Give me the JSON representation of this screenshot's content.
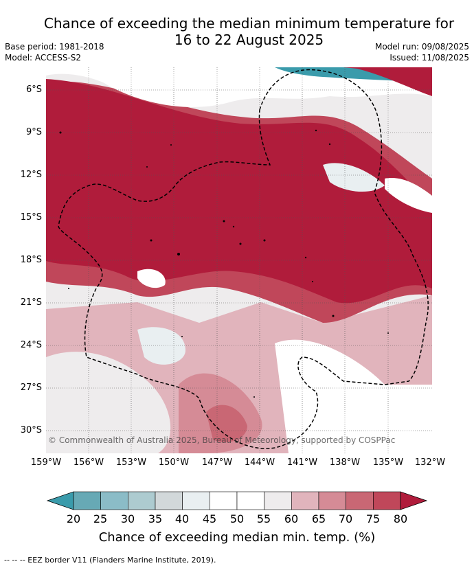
{
  "title_line1": "Chance of exceeding the median minimum temperature for",
  "title_line2": "16 to 22 August 2025",
  "meta": {
    "base_period": "Base period: 1981-2018",
    "model": "Model: ACCESS-S2",
    "model_run": "Model run: 09/08/2025",
    "issued": "Issued: 11/08/2025"
  },
  "lat_labels": [
    "6°S",
    "9°S",
    "12°S",
    "15°S",
    "18°S",
    "21°S",
    "24°S",
    "27°S",
    "30°S"
  ],
  "lon_labels": [
    "159°W",
    "156°W",
    "153°W",
    "150°W",
    "147°W",
    "144°W",
    "141°W",
    "138°W",
    "135°W",
    "132°W"
  ],
  "copyright": "© Commonwealth of Australia 2025, Bureau of Meteorology, supported by COSPPac",
  "colorbar": {
    "ticks": [
      "20",
      "25",
      "30",
      "35",
      "40",
      "45",
      "50",
      "55",
      "60",
      "65",
      "70",
      "75",
      "80"
    ],
    "label": "Chance of exceeding median min. temp. (%)",
    "colors": [
      "#67a9b5",
      "#8bbcc7",
      "#adcbd0",
      "#d2d8da",
      "#e9eff1",
      "#ffffff",
      "#ffffff",
      "#eeeced",
      "#e1b4bc",
      "#d58b96",
      "#c96774",
      "#c0475a"
    ],
    "under_color": "#3a9bab",
    "over_color": "#b01c3b"
  },
  "footer": "--  --  -- EEZ border V11 (Flanders Marine Institute, 2019)."
}
